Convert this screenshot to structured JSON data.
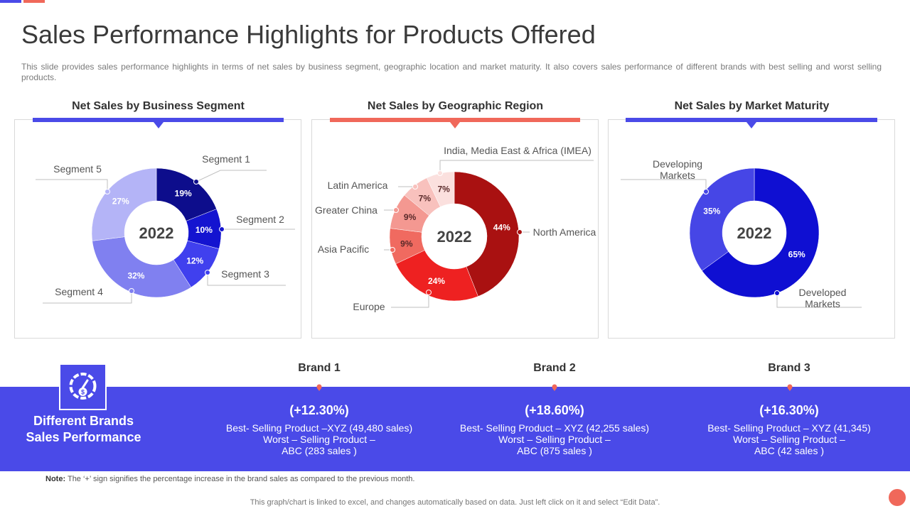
{
  "colors": {
    "accent_blue": "#4a4ae8",
    "accent_coral": "#f0685a",
    "band": "#4a4ae8",
    "leader": "#bfbfbf"
  },
  "title": "Sales Performance Highlights for Products Offered",
  "description": "This slide provides sales performance highlights in terms of net sales by business segment, geographic location and market maturity. It also covers sales performance of different brands with best selling and worst selling products.",
  "panels": [
    {
      "title": "Net Sales by Business Segment",
      "accent": "#4a4ae8"
    },
    {
      "title": "Net Sales by Geographic Region",
      "accent": "#f0685a"
    },
    {
      "title": "Net Sales by Market Maturity",
      "accent": "#4a4ae8"
    }
  ],
  "chart_data": [
    {
      "type": "pie",
      "variant": "donut",
      "title": "Net Sales by Business Segment",
      "center_label": "2022",
      "slices": [
        {
          "label": "Segment 1",
          "value": 19,
          "value_label": "19%",
          "color": "#0d0d8c"
        },
        {
          "label": "Segment 2",
          "value": 10,
          "value_label": "10%",
          "color": "#1414d0"
        },
        {
          "label": "Segment 3",
          "value": 12,
          "value_label": "12%",
          "color": "#4040ee"
        },
        {
          "label": "Segment 4",
          "value": 32,
          "value_label": "32%",
          "color": "#8080f0"
        },
        {
          "label": "Segment 5",
          "value": 27,
          "value_label": "27%",
          "color": "#b4b4f7"
        }
      ]
    },
    {
      "type": "pie",
      "variant": "donut",
      "title": "Net Sales by Geographic Region",
      "center_label": "2022",
      "slices": [
        {
          "label": "North America",
          "value": 44,
          "value_label": "44%",
          "color": "#a91111"
        },
        {
          "label": "Europe",
          "value": 24,
          "value_label": "24%",
          "color": "#ee2121"
        },
        {
          "label": "Asia Pacific",
          "value": 9,
          "value_label": "9%",
          "color": "#f06a60"
        },
        {
          "label": "Greater China",
          "value": 9,
          "value_label": "9%",
          "color": "#f49891"
        },
        {
          "label": "Latin America",
          "value": 7,
          "value_label": "7%",
          "color": "#f8c1bd"
        },
        {
          "label": "India, Media East & Africa (IMEA)",
          "value": 7,
          "value_label": "7%",
          "color": "#fbe0de"
        }
      ]
    },
    {
      "type": "pie",
      "variant": "donut",
      "title": "Net Sales by Market Maturity",
      "center_label": "2022",
      "slices": [
        {
          "label": "Developed Markets",
          "value": 65,
          "value_label": "65%",
          "color": "#0f0fd2"
        },
        {
          "label": "Developing Markets",
          "value": 35,
          "value_label": "35%",
          "color": "#4646e6"
        }
      ]
    }
  ],
  "brands_section": {
    "heading_line1": "Different Brands",
    "heading_line2": "Sales Performance",
    "icon": "speedometer-dollar-icon",
    "brands": [
      {
        "name": "Brand 1",
        "change": "(+12.30%)",
        "line1": "Best- Selling Product –XYZ   (49,480 sales)",
        "line2": "Worst – Selling Product –",
        "line3": "ABC (283 sales )"
      },
      {
        "name": "Brand 2",
        "change": "(+18.60%)",
        "line1": "Best- Selling Product – XYZ   (42,255 sales)",
        "line2": "Worst – Selling Product –",
        "line3": "ABC (875 sales )"
      },
      {
        "name": "Brand 3",
        "change": "(+16.30%)",
        "line1": "Best- Selling Product – XYZ   (41,345)",
        "line2": "Worst – Selling Product –",
        "line3": "ABC (42 sales )"
      }
    ]
  },
  "note": {
    "label": "Note:",
    "text": "The ‘+’ sign signifies the percentage increase in the brand sales as compared to the previous month."
  },
  "footer": "This graph/chart is linked to excel,  and changes automatically based on data. Just left click on it and select “Edit Data”."
}
